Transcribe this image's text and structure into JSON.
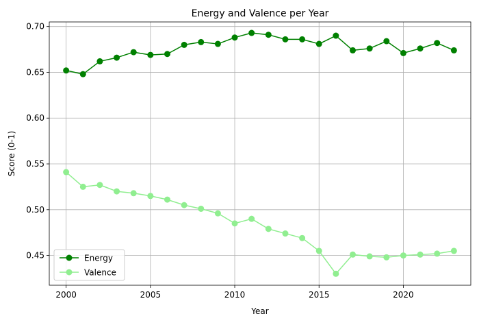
{
  "chart_data": {
    "type": "line",
    "title": "Energy and Valence per Year",
    "xlabel": "Year",
    "ylabel": "Score (0-1)",
    "x": [
      2000,
      2001,
      2002,
      2003,
      2004,
      2005,
      2006,
      2007,
      2008,
      2009,
      2010,
      2011,
      2012,
      2013,
      2014,
      2015,
      2016,
      2017,
      2018,
      2019,
      2020,
      2021,
      2022,
      2023
    ],
    "xlim": [
      1999,
      2024
    ],
    "ylim": [
      0.4175,
      0.705
    ],
    "xticks": [
      2000,
      2005,
      2010,
      2015,
      2020
    ],
    "yticks": [
      0.45,
      0.5,
      0.55,
      0.6,
      0.65,
      0.7
    ],
    "ytick_labels": [
      "0.45",
      "0.50",
      "0.55",
      "0.60",
      "0.65",
      "0.70"
    ],
    "grid": true,
    "legend_position": "lower-left",
    "series": [
      {
        "name": "Energy",
        "color": "#008000",
        "marker": "circle",
        "values": [
          0.652,
          0.648,
          0.662,
          0.666,
          0.672,
          0.669,
          0.67,
          0.68,
          0.683,
          0.681,
          0.688,
          0.693,
          0.691,
          0.686,
          0.686,
          0.681,
          0.69,
          0.674,
          0.676,
          0.684,
          0.671,
          0.676,
          0.682,
          0.674
        ]
      },
      {
        "name": "Valence",
        "color": "#90ee90",
        "marker": "circle",
        "values": [
          0.541,
          0.525,
          0.527,
          0.52,
          0.518,
          0.515,
          0.511,
          0.505,
          0.501,
          0.496,
          0.485,
          0.49,
          0.479,
          0.474,
          0.469,
          0.455,
          0.43,
          0.451,
          0.449,
          0.448,
          0.45,
          0.451,
          0.452,
          0.455
        ]
      }
    ]
  }
}
